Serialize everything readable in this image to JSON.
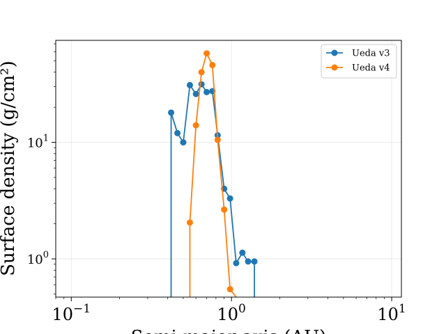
{
  "chart_data": {
    "type": "line",
    "xscale": "log",
    "yscale": "log",
    "xlim": [
      0.08,
      11.5
    ],
    "ylim": [
      0.47,
      75
    ],
    "xlabel": "Semi-major axis (AU)",
    "ylabel": "Surface density (g/cm²)",
    "grid": true,
    "legend_position": "upper-right",
    "x_ticks": [
      {
        "value": 0.1,
        "base": "10",
        "exp": "−1"
      },
      {
        "value": 1,
        "base": "10",
        "exp": "0"
      },
      {
        "value": 10,
        "base": "10",
        "exp": "1"
      }
    ],
    "y_ticks": [
      {
        "value": 1,
        "base": "10",
        "exp": "0"
      },
      {
        "value": 10,
        "base": "10",
        "exp": "1"
      }
    ],
    "series": [
      {
        "name": "Ueda v3",
        "color": "#1f77b4",
        "x": [
          0.42,
          0.46,
          0.5,
          0.55,
          0.6,
          0.65,
          0.7,
          0.76,
          0.82,
          0.9,
          0.98,
          1.07,
          1.17,
          1.27,
          1.39
        ],
        "y": [
          18.0,
          12.0,
          10.0,
          31.0,
          26.0,
          31.5,
          27.0,
          27.5,
          11.5,
          4.0,
          3.3,
          0.92,
          1.13,
          0.95,
          0.95
        ],
        "tail_low": [
          0.42,
          1.39
        ]
      },
      {
        "name": "Ueda v4",
        "color": "#ff7f0e",
        "x": [
          0.55,
          0.6,
          0.65,
          0.7,
          0.76,
          0.82,
          0.9,
          0.98,
          1.07
        ],
        "y": [
          2.05,
          14.0,
          40.0,
          58.0,
          46.0,
          10.5,
          2.65,
          0.55,
          0.47
        ],
        "tail_low": [
          0.55
        ]
      }
    ]
  }
}
